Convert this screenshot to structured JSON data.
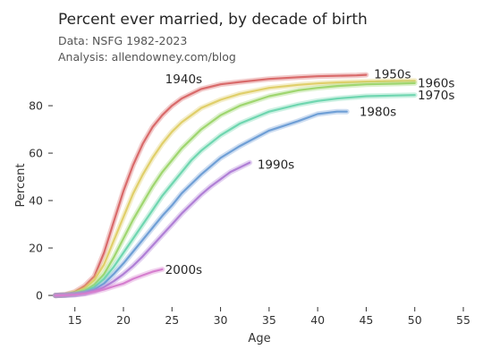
{
  "header": {
    "title": "Percent ever married, by decade of birth",
    "subtitle_1": "Data: NSFG 1982-2023",
    "subtitle_2": "Analysis: allendowney.com/blog"
  },
  "chart_data": {
    "type": "line",
    "title": "Percent ever married, by decade of birth",
    "xlabel": "Age",
    "ylabel": "Percent",
    "xlim": [
      13,
      55
    ],
    "ylim": [
      -3,
      94
    ],
    "xticks": [
      15,
      20,
      25,
      30,
      35,
      40,
      45,
      50,
      55
    ],
    "yticks": [
      0,
      20,
      40,
      60,
      80
    ],
    "grid": false,
    "legend": "inline labels",
    "series": [
      {
        "name": "1940s",
        "color": "#d96a6a",
        "x": [
          13,
          14,
          15,
          16,
          17,
          18,
          19,
          20,
          21,
          22,
          23,
          24,
          25,
          26,
          27,
          28,
          30,
          32,
          35,
          38,
          40,
          42,
          44,
          45
        ],
        "y": [
          0,
          0.3,
          1.5,
          4,
          8,
          18,
          31,
          44,
          55,
          64,
          71,
          76,
          80,
          83,
          85,
          87,
          89,
          90,
          91.3,
          92,
          92.4,
          92.6,
          92.8,
          93
        ]
      },
      {
        "name": "1950s",
        "color": "#e0cf6a",
        "x": [
          13,
          14,
          15,
          16,
          17,
          18,
          19,
          20,
          21,
          22,
          23,
          24,
          25,
          26,
          27,
          28,
          30,
          32,
          35,
          38,
          40,
          42,
          45,
          48,
          50
        ],
        "y": [
          0,
          0.2,
          1.2,
          3,
          6.5,
          13,
          23,
          33,
          43,
          51,
          58,
          64,
          69,
          73,
          76,
          79,
          82.5,
          85,
          87.5,
          88.8,
          89.4,
          89.8,
          90.2,
          90.4,
          90.5
        ]
      },
      {
        "name": "1960s",
        "color": "#9fd66f",
        "x": [
          13,
          14,
          15,
          16,
          17,
          18,
          19,
          20,
          21,
          22,
          23,
          24,
          25,
          26,
          27,
          28,
          30,
          32,
          35,
          38,
          40,
          42,
          45,
          48,
          50
        ],
        "y": [
          0,
          0.2,
          0.8,
          2,
          4.5,
          9,
          16,
          24,
          32,
          39,
          46,
          52,
          57,
          62,
          66,
          70,
          76,
          80,
          84,
          86.5,
          87.5,
          88.3,
          89,
          89.3,
          89.5
        ]
      },
      {
        "name": "1970s",
        "color": "#6fd6b0",
        "x": [
          13,
          14,
          15,
          16,
          17,
          18,
          19,
          20,
          21,
          22,
          23,
          24,
          25,
          26,
          27,
          28,
          30,
          32,
          35,
          38,
          40,
          42,
          45,
          48,
          50
        ],
        "y": [
          0,
          0.1,
          0.6,
          1.5,
          3.5,
          7,
          12,
          18,
          24,
          30,
          36,
          42,
          47,
          52,
          57,
          61,
          67.5,
          72.5,
          77.5,
          80.5,
          82,
          83,
          84,
          84.3,
          84.5
        ]
      },
      {
        "name": "1980s",
        "color": "#6f9fd6",
        "x": [
          13,
          14,
          15,
          16,
          17,
          18,
          19,
          20,
          21,
          22,
          23,
          24,
          25,
          26,
          27,
          28,
          30,
          32,
          35,
          38,
          40,
          42,
          43
        ],
        "y": [
          0,
          0.1,
          0.4,
          1,
          2.5,
          5,
          9,
          13.5,
          18.5,
          23.5,
          28.5,
          33.5,
          38,
          43,
          47,
          51,
          58,
          63,
          69.5,
          73.5,
          76.5,
          77.5,
          77.5
        ]
      },
      {
        "name": "1990s",
        "color": "#b07fd6",
        "x": [
          13,
          14,
          15,
          16,
          17,
          18,
          19,
          20,
          21,
          22,
          23,
          24,
          25,
          26,
          27,
          28,
          29,
          30,
          31,
          32,
          33
        ],
        "y": [
          0,
          0.1,
          0.3,
          0.8,
          1.8,
          3.5,
          6,
          9,
          12.5,
          16.5,
          21,
          25.5,
          30,
          34.5,
          38.5,
          42.5,
          46,
          49,
          52,
          54,
          56
        ]
      },
      {
        "name": "2000s",
        "color": "#d67fcf",
        "x": [
          13,
          14,
          15,
          16,
          17,
          18,
          19,
          20,
          21,
          22,
          23,
          24
        ],
        "y": [
          0,
          0.1,
          0.3,
          0.7,
          1.5,
          2.5,
          3.8,
          5,
          7,
          8.5,
          10,
          11
        ]
      }
    ],
    "labels": [
      {
        "text": "1940s",
        "x": 24.3,
        "y": 91.3
      },
      {
        "text": "1950s",
        "x": 45.8,
        "y": 93.4
      },
      {
        "text": "1960s",
        "x": 50.3,
        "y": 89.7
      },
      {
        "text": "1970s",
        "x": 50.3,
        "y": 84.5
      },
      {
        "text": "1980s",
        "x": 44.3,
        "y": 77.5
      },
      {
        "text": "1990s",
        "x": 33.8,
        "y": 55.3
      },
      {
        "text": "2000s",
        "x": 24.3,
        "y": 11
      }
    ]
  }
}
